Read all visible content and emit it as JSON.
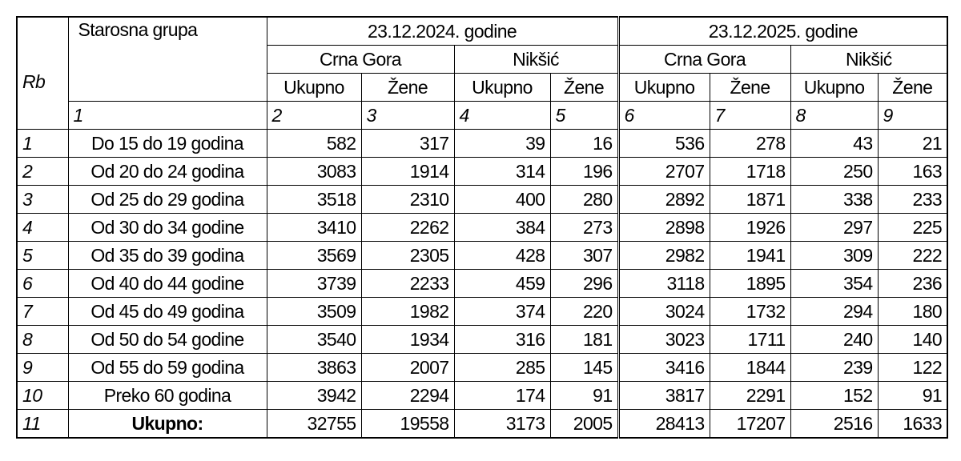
{
  "header": {
    "rb": "Rb",
    "group": "Starosna grupa",
    "periods": [
      "23.12.2024. godine",
      "23.12.2025. godine"
    ],
    "regions": [
      "Crna Gora",
      "Nikšić",
      "Crna Gora",
      "Nikšić"
    ],
    "subcols": [
      "Ukupno",
      "Žene",
      "Ukupno",
      "Žene",
      "Ukupno",
      "Žene",
      "Ukupno",
      "Žene"
    ],
    "colnums": [
      "1",
      "2",
      "3",
      "4",
      "5",
      "6",
      "7",
      "8",
      "9"
    ]
  },
  "rows": [
    {
      "rb": "1",
      "label": "Do 15 do 19 godina",
      "values": [
        582,
        317,
        39,
        16,
        536,
        278,
        43,
        21
      ]
    },
    {
      "rb": "2",
      "label": "Od 20 do 24 godina",
      "values": [
        3083,
        1914,
        314,
        196,
        2707,
        1718,
        250,
        163
      ]
    },
    {
      "rb": "3",
      "label": "Od 25 do 29 godina",
      "values": [
        3518,
        2310,
        400,
        280,
        2892,
        1871,
        338,
        233
      ]
    },
    {
      "rb": "4",
      "label": "Od 30 do 34 godine",
      "values": [
        3410,
        2262,
        384,
        273,
        2898,
        1926,
        297,
        225
      ]
    },
    {
      "rb": "5",
      "label": "Od 35 do 39 godina",
      "values": [
        3569,
        2305,
        428,
        307,
        2982,
        1941,
        309,
        222
      ]
    },
    {
      "rb": "6",
      "label": "Od 40 do 44 godine",
      "values": [
        3739,
        2233,
        459,
        296,
        3118,
        1895,
        354,
        236
      ]
    },
    {
      "rb": "7",
      "label": "Od 45 do 49 godina",
      "values": [
        3509,
        1982,
        374,
        220,
        3024,
        1732,
        294,
        180
      ]
    },
    {
      "rb": "8",
      "label": "Od 50 do 54 godine",
      "values": [
        3540,
        1934,
        316,
        181,
        3023,
        1711,
        240,
        140
      ]
    },
    {
      "rb": "9",
      "label": "Od 55 do 59 godina",
      "values": [
        3863,
        2007,
        285,
        145,
        3416,
        1844,
        239,
        122
      ]
    },
    {
      "rb": "10",
      "label": "Preko 60 godina",
      "values": [
        3942,
        2294,
        174,
        91,
        3817,
        2291,
        152,
        91
      ]
    },
    {
      "rb": "11",
      "label": "Ukupno:",
      "values": [
        32755,
        19558,
        3173,
        2005,
        28413,
        17207,
        2516,
        1633
      ],
      "bold": true
    }
  ]
}
